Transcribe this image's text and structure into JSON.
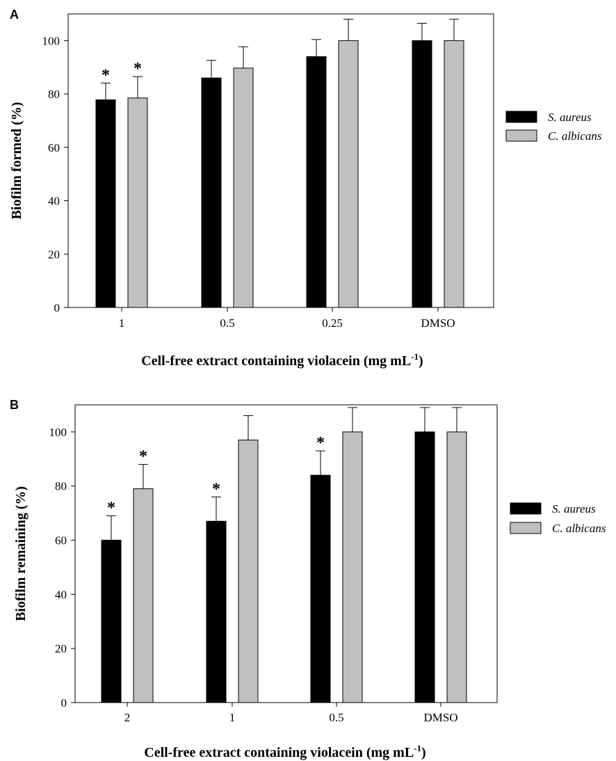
{
  "colors": {
    "series_dark": "#000000",
    "series_light": "#c0c0c0",
    "axis": "#000000"
  },
  "chart_data": [
    {
      "type": "bar",
      "panel_label": "A",
      "categories": [
        "1",
        "0.5",
        "0.25",
        "DMSO"
      ],
      "series": [
        {
          "name": "S. aureus",
          "values": [
            77.8,
            86.0,
            94.0,
            100.0
          ],
          "errors": [
            6.3,
            6.6,
            6.4,
            6.5
          ],
          "color": "#000000",
          "significant": [
            true,
            false,
            false,
            false
          ]
        },
        {
          "name": "C. albicans",
          "values": [
            78.5,
            89.7,
            100.0,
            100.0
          ],
          "errors": [
            8.0,
            8.0,
            8.0,
            8.0
          ],
          "color": "#c0c0c0",
          "significant": [
            true,
            false,
            false,
            false
          ]
        }
      ],
      "xlabel": "Cell-free extract containing violacein (mg mL",
      "xlabel_sup": "-1",
      "xlabel_end": ")",
      "ylabel": "Biofilm formed (%)",
      "yticks": [
        0,
        20,
        40,
        60,
        80,
        100
      ],
      "ylim": [
        0,
        110
      ],
      "significance_marker": "*",
      "legend_position": "right"
    },
    {
      "type": "bar",
      "panel_label": "B",
      "categories": [
        "2",
        "1",
        "0.5",
        "DMSO"
      ],
      "series": [
        {
          "name": "S. aureus",
          "values": [
            60.0,
            67.0,
            84.0,
            100.0
          ],
          "errors": [
            9.0,
            9.0,
            9.0,
            9.0
          ],
          "color": "#000000",
          "significant": [
            true,
            true,
            true,
            false
          ]
        },
        {
          "name": "C. albicans",
          "values": [
            79.0,
            97.0,
            100.0,
            100.0
          ],
          "errors": [
            9.0,
            9.0,
            9.0,
            9.0
          ],
          "color": "#c0c0c0",
          "significant": [
            true,
            false,
            false,
            false
          ]
        }
      ],
      "xlabel": "Cell-free extract containing violacein (mg mL",
      "xlabel_sup": "-1",
      "xlabel_end": ")",
      "ylabel": "Biofilm remaining (%)",
      "yticks": [
        0,
        20,
        40,
        60,
        80,
        100
      ],
      "ylim": [
        0,
        110
      ],
      "significance_marker": "*",
      "legend_position": "right"
    }
  ]
}
